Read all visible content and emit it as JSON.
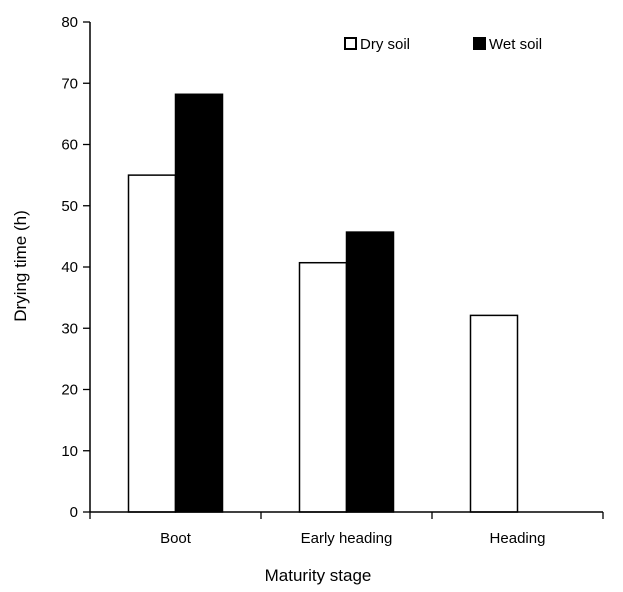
{
  "chart_data": {
    "type": "bar",
    "title": "",
    "xlabel": "Maturity stage",
    "ylabel": "Drying time (h)",
    "ylim": [
      0,
      80
    ],
    "yticks": [
      0,
      10,
      20,
      30,
      40,
      50,
      60,
      70,
      80
    ],
    "categories": [
      "Boot",
      "Early heading",
      "Heading"
    ],
    "series": [
      {
        "name": "Dry soil",
        "values": [
          55,
          40.7,
          32.1
        ]
      },
      {
        "name": "Wet soil",
        "values": [
          68.2,
          45.7,
          null
        ]
      }
    ],
    "colors": {
      "Dry soil": "#ffffff",
      "Wet soil": "#000000",
      "outline": "#000000"
    },
    "grid": false,
    "legend_position": "top-right"
  }
}
